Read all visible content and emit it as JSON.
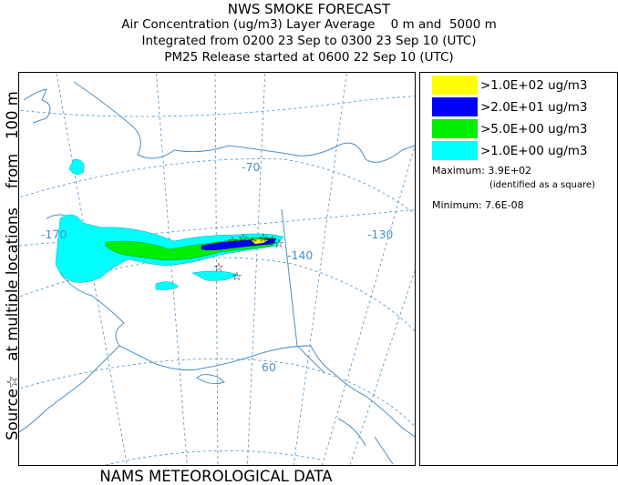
{
  "header": {
    "title": "NWS SMOKE FORECAST",
    "line1": "Air Concentration (ug/m3) Layer Average    0 m and  5000 m",
    "line2": "Integrated from 0200 23 Sep to 0300 23 Sep 10 (UTC)",
    "line3": "PM25 Release started at 0600 22 Sep 10 (UTC)"
  },
  "side_label": "Source☆   at multiple locations    from   100 m",
  "footer": "NAMS METEOROLOGICAL DATA",
  "map": {
    "graticule_labels": [
      "-170",
      "-70",
      "-140",
      "-130",
      "60"
    ],
    "colors": {
      "coast": "#4a90c8",
      "graticule": "#4a90c8",
      "border": "#4a90c8"
    }
  },
  "legend": {
    "items": [
      {
        "label": ">1.0E+02 ug/m3",
        "color": "#ffff00"
      },
      {
        "label": ">2.0E+01 ug/m3",
        "color": "#0000ff"
      },
      {
        "label": ">5.0E+00 ug/m3",
        "color": "#00ee00"
      },
      {
        "label": ">1.0E+00 ug/m3",
        "color": "#00ffff"
      }
    ],
    "maximum": "Maximum: 3.9E+02",
    "maximum_note": "(identified as a square)",
    "minimum": "Minimum: 7.6E-08"
  }
}
